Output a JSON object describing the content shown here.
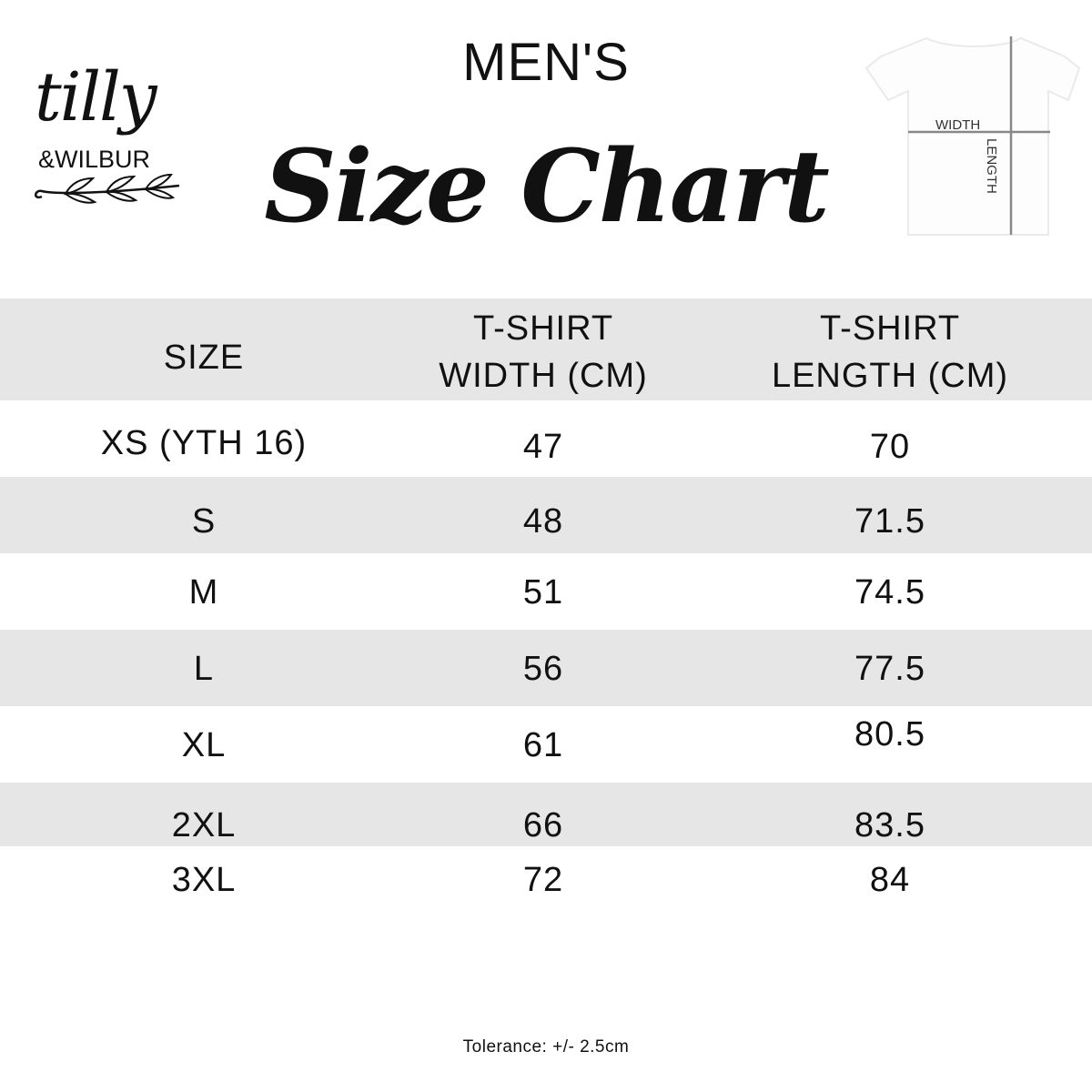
{
  "brand": {
    "logo_script": "tilly",
    "logo_sub": "&WILBUR"
  },
  "header": {
    "subtitle": "MEN'S",
    "title": "Size Chart"
  },
  "diagram": {
    "width_label": "WIDTH",
    "length_label": "LENGTH"
  },
  "table": {
    "columns": [
      "SIZE",
      "T-SHIRT WIDTH (CM)",
      "T-SHIRT LENGTH (CM)"
    ],
    "column_lines": [
      [
        "SIZE"
      ],
      [
        "T-SHIRT",
        "WIDTH (CM)"
      ],
      [
        "T-SHIRT",
        "LENGTH (CM)"
      ]
    ],
    "rows": [
      [
        "XS (YTH 16)",
        "47",
        "70"
      ],
      [
        "S",
        "48",
        "71.5"
      ],
      [
        "M",
        "51",
        "74.5"
      ],
      [
        "L",
        "56",
        "77.5"
      ],
      [
        "XL",
        "61",
        "80.5"
      ],
      [
        "2XL",
        "66",
        "83.5"
      ],
      [
        "3XL",
        "72",
        "84"
      ]
    ],
    "stripe_color": "#e6e6e6"
  },
  "footer": {
    "tolerance": "Tolerance: +/- 2.5cm"
  }
}
